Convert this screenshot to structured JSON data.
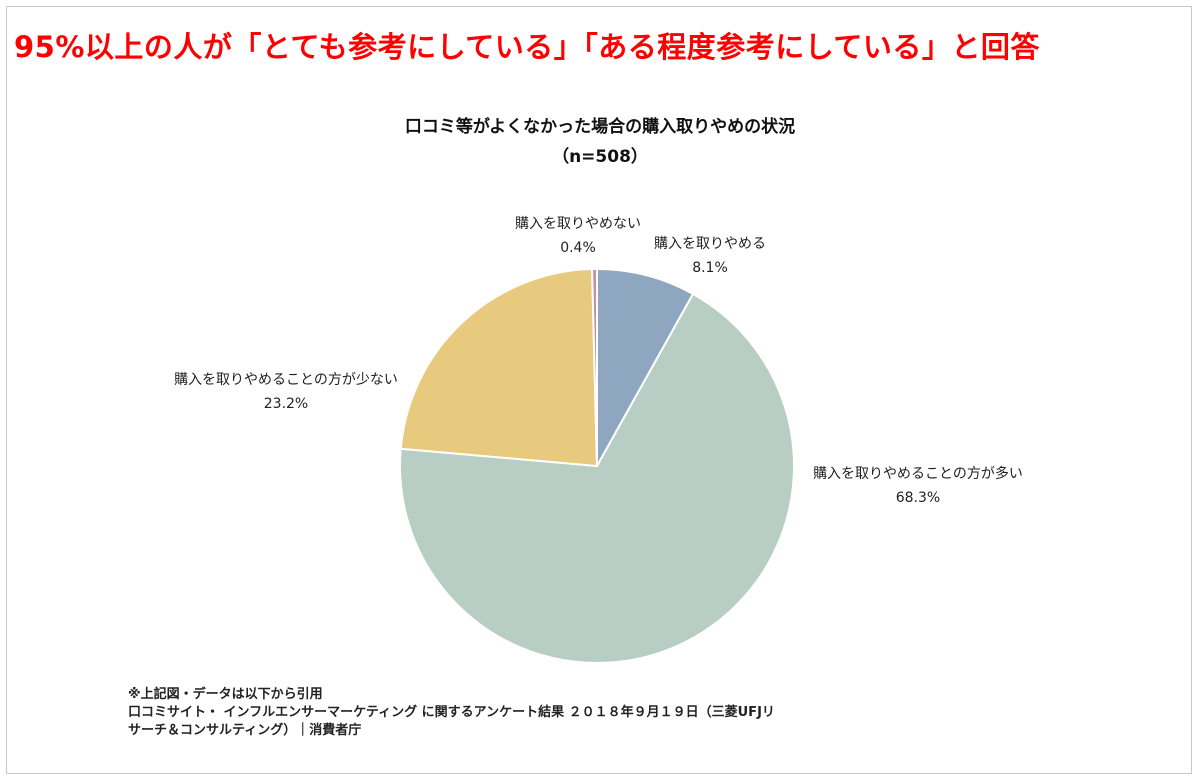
{
  "headline": "95%以上の人が「とても参考にしている」「ある程度参考にしている」と回答",
  "chart_data": {
    "type": "pie",
    "title": "口コミ等がよくなかった場合の購入取りやめの状況",
    "subtitle": "（n=508）",
    "slices": [
      {
        "label": "購入を取りやめる",
        "value": 8.1,
        "value_label": "8.1%",
        "color": "#8fa6c0"
      },
      {
        "label": "購入を取りやめることの方が多い",
        "value": 68.3,
        "value_label": "68.3%",
        "color": "#b8cdc4"
      },
      {
        "label": "購入を取りやめることの方が少ない",
        "value": 23.2,
        "value_label": "23.2%",
        "color": "#e8ca7e"
      },
      {
        "label": "購入を取りやめない",
        "value": 0.4,
        "value_label": "0.4%",
        "color": "#c8909c"
      }
    ]
  },
  "source": {
    "line1": "※上記図・データは以下から引用",
    "line2": "口コミサイト・ インフルエンサーマーケティング に関するアンケート結果 ２０１８年９月１９日（三菱UFJリ",
    "line3": "サーチ＆コンサルティング）｜消費者庁"
  }
}
